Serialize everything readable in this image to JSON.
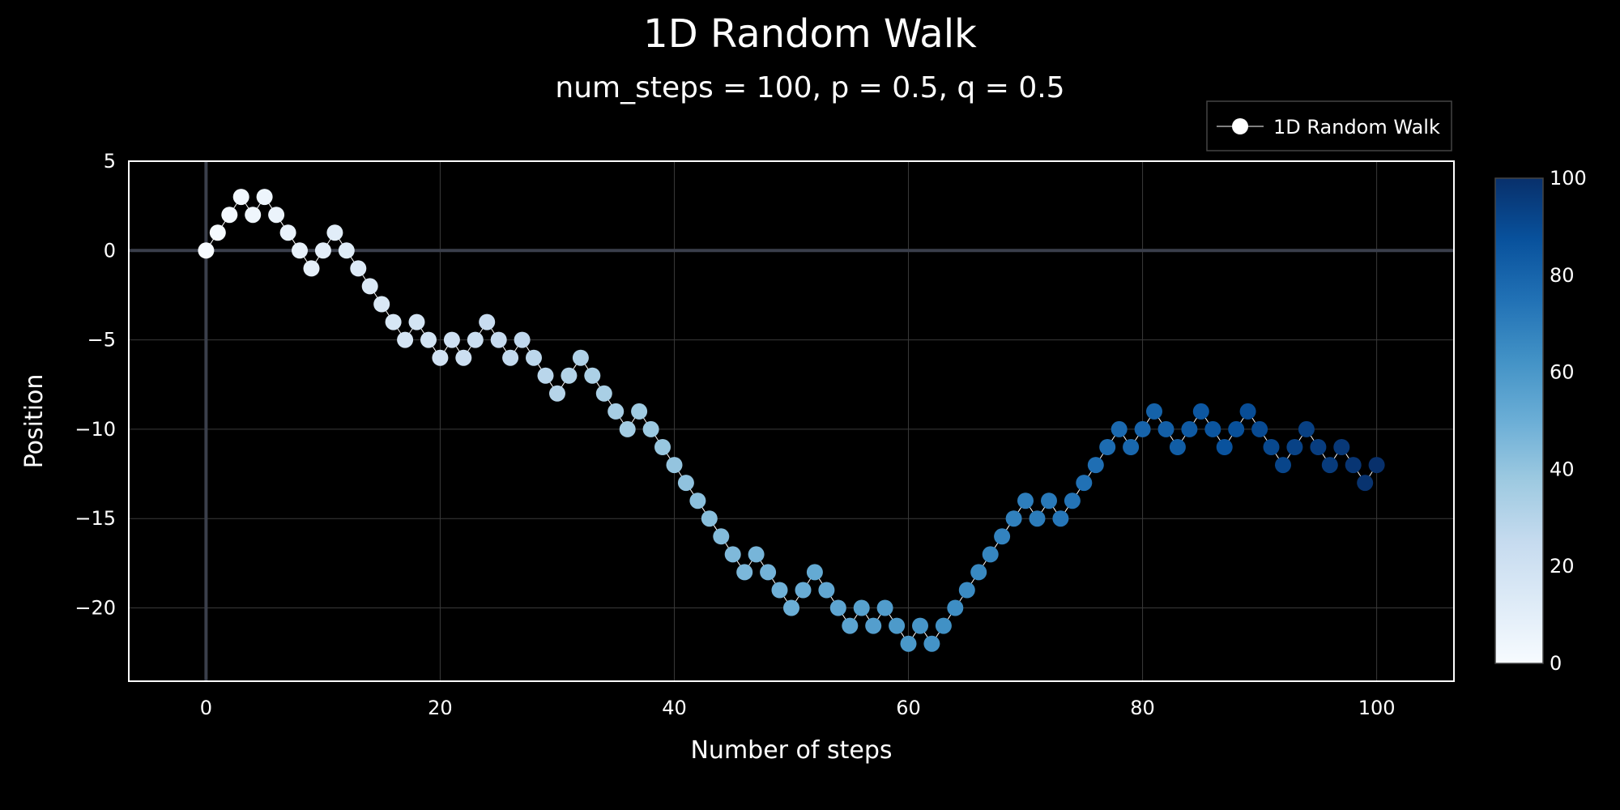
{
  "chart_data": {
    "type": "line",
    "title": "1D Random Walk",
    "subtitle": "num_steps = 100, p = 0.5, q = 0.5",
    "xlabel": "Number of steps",
    "ylabel": "Position",
    "xlim": [
      -6.6,
      106.6
    ],
    "ylim": [
      -24.1,
      5.0
    ],
    "x_ticks": [
      0,
      20,
      40,
      60,
      80,
      100
    ],
    "y_ticks": [
      5,
      0,
      -5,
      -10,
      -15,
      -20
    ],
    "y_tick_labels": [
      "5",
      "0",
      "−5",
      "−10",
      "−15",
      "−20"
    ],
    "grid": true,
    "legend": {
      "position": "top-right",
      "entries": [
        "1D Random Walk"
      ]
    },
    "colorbar": {
      "min": 0,
      "max": 100,
      "ticks": [
        0,
        20,
        40,
        60,
        80,
        100
      ],
      "colorscale": "Blues"
    },
    "series": [
      {
        "name": "1D Random Walk",
        "mode": "lines+markers",
        "x": [
          0,
          1,
          2,
          3,
          4,
          5,
          6,
          7,
          8,
          9,
          10,
          11,
          12,
          13,
          14,
          15,
          16,
          17,
          18,
          19,
          20,
          21,
          22,
          23,
          24,
          25,
          26,
          27,
          28,
          29,
          30,
          31,
          32,
          33,
          34,
          35,
          36,
          37,
          38,
          39,
          40,
          41,
          42,
          43,
          44,
          45,
          46,
          47,
          48,
          49,
          50,
          51,
          52,
          53,
          54,
          55,
          56,
          57,
          58,
          59,
          60,
          61,
          62,
          63,
          64,
          65,
          66,
          67,
          68,
          69,
          70,
          71,
          72,
          73,
          74,
          75,
          76,
          77,
          78,
          79,
          80,
          81,
          82,
          83,
          84,
          85,
          86,
          87,
          88,
          89,
          90,
          91,
          92,
          93,
          94,
          95,
          96,
          97,
          98,
          99,
          100
        ],
        "y": [
          0,
          1,
          2,
          3,
          2,
          3,
          2,
          1,
          0,
          -1,
          0,
          1,
          0,
          -1,
          -2,
          -3,
          -4,
          -5,
          -4,
          -5,
          -6,
          -5,
          -6,
          -5,
          -4,
          -5,
          -6,
          -5,
          -6,
          -7,
          -8,
          -7,
          -6,
          -7,
          -8,
          -9,
          -10,
          -9,
          -10,
          -11,
          -12,
          -13,
          -14,
          -15,
          -16,
          -17,
          -18,
          -17,
          -18,
          -19,
          -20,
          -19,
          -18,
          -19,
          -20,
          -21,
          -20,
          -21,
          -20,
          -21,
          -22,
          -21,
          -22,
          -21,
          -20,
          -19,
          -18,
          -17,
          -16,
          -15,
          -14,
          -15,
          -14,
          -15,
          -14,
          -13,
          -12,
          -11,
          -10,
          -11,
          -10,
          -9,
          -10,
          -11,
          -10,
          -9,
          -10,
          -11,
          -10,
          -9,
          -10,
          -11,
          -12,
          -11,
          -10,
          -11,
          -12,
          -11,
          -12,
          -13,
          -12
        ]
      }
    ]
  },
  "colors": {
    "background": "#000000",
    "grid": "#3a3a3a",
    "zeroline": "#3a3f4b",
    "frame": "#ffffff",
    "line": "#ffffff",
    "colorscale": [
      "#f7fbff",
      "#deebf7",
      "#c6dbef",
      "#9ecae1",
      "#6baed6",
      "#4292c6",
      "#2171b5",
      "#08519c",
      "#08306b"
    ]
  }
}
